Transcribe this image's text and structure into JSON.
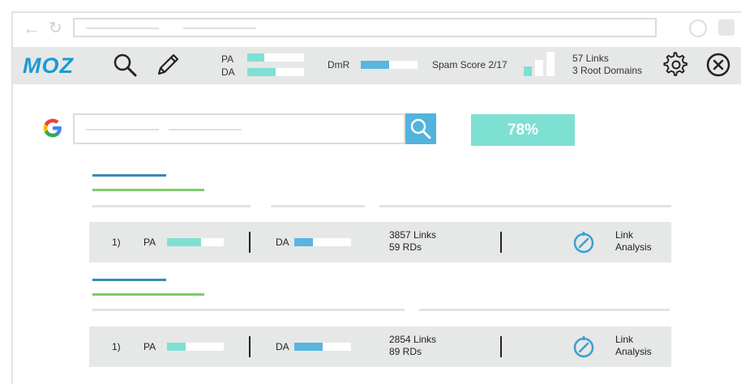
{
  "browser": {
    "back_icon": "arrow-left-icon",
    "reload_icon": "reload-icon"
  },
  "toolbar": {
    "logo": "MOZ",
    "pa_label": "PA",
    "da_label": "DA",
    "pa_fill": 0.3,
    "da_fill": 0.5,
    "dmr_label": "DmR",
    "dmr_fill": 0.5,
    "spam_label": "Spam Score 2/17",
    "links": "57 Links",
    "root_domains": "3 Root Domains"
  },
  "search": {
    "percent": "78%"
  },
  "results": [
    {
      "rank": "1)",
      "pa_label": "PA",
      "pa_fill": 0.6,
      "da_label": "DA",
      "da_fill": 0.33,
      "links": "3857 Links",
      "rds": "59 RDs",
      "action_line1": "Link",
      "action_line2": "Analysis"
    },
    {
      "rank": "1)",
      "pa_label": "PA",
      "pa_fill": 0.33,
      "da_label": "DA",
      "da_fill": 0.5,
      "links": "2854 Links",
      "rds": "89 RDs",
      "action_line1": "Link",
      "action_line2": "Analysis"
    }
  ],
  "colors": {
    "teal": "#7ee0d3",
    "blue": "#52b3dd",
    "green": "#7dcb6a",
    "dark_blue": "#3a8ab0",
    "moz": "#1a9ad6"
  }
}
